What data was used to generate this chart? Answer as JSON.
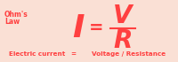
{
  "bg_color": "#FAE0D5",
  "text_color": "#FF4040",
  "ohms_law_line1": "Ohm's",
  "ohms_law_line2": "Law",
  "I_text": "I",
  "eq_text": "=",
  "V_text": "V",
  "R_text": "R",
  "bottom_left": "Electric current",
  "bottom_eq": "=",
  "bottom_right": "Voltage / Resistance",
  "fig_width": 2.0,
  "fig_height": 0.7,
  "dpi": 100
}
